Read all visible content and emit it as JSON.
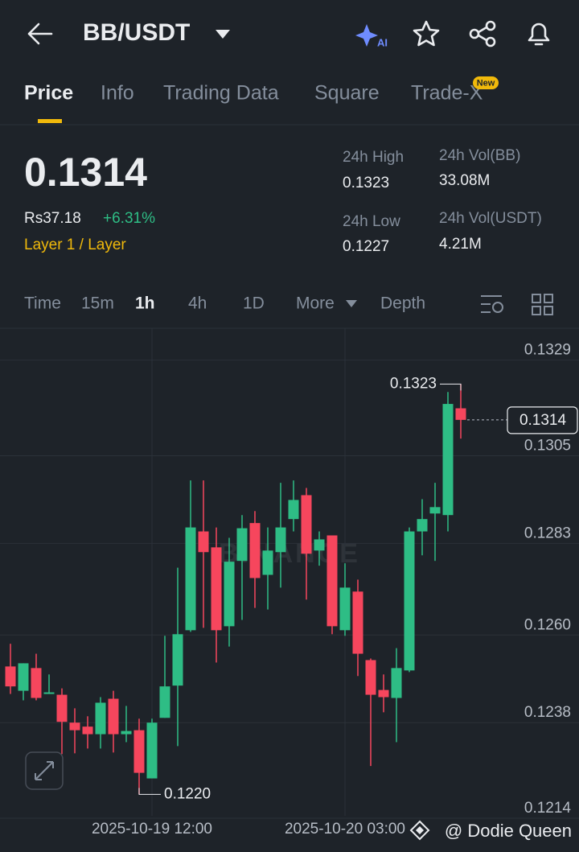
{
  "header": {
    "pair": "BB/USDT"
  },
  "tabs": {
    "items": [
      "Price",
      "Info",
      "Trading Data",
      "Square",
      "Trade-X"
    ],
    "badge": "New"
  },
  "ticker": {
    "price": "0.1314",
    "local_price": "Rs37.18",
    "change": "+6.31%",
    "tag": "Layer 1 / Layer",
    "stats": [
      {
        "label": "24h High",
        "value": "0.1323"
      },
      {
        "label": "24h Vol(BB)",
        "value": "33.08M"
      },
      {
        "label": "24h Low",
        "value": "0.1227"
      },
      {
        "label": "24h Vol(USDT)",
        "value": "4.21M"
      }
    ]
  },
  "intervals": {
    "items": [
      "Time",
      "15m",
      "1h",
      "4h",
      "1D",
      "More",
      "Depth"
    ]
  },
  "footer": {
    "credit": "@ Dodie Queen"
  },
  "chart_data": {
    "type": "candlestick",
    "watermark": "BINANCE",
    "categories": [
      null,
      null,
      null,
      null,
      null,
      null,
      null,
      null,
      null,
      null,
      null,
      "2025-10-19 12:00",
      null,
      null,
      null,
      null,
      null,
      null,
      null,
      null,
      null,
      null,
      null,
      null,
      null,
      null,
      "2025-10-20 03:00",
      null,
      null,
      null,
      null,
      null,
      null,
      null,
      null,
      null
    ],
    "open": [
      0.12521,
      0.1246,
      0.12517,
      0.12452,
      0.1245,
      0.1238,
      0.1237,
      0.12351,
      0.1244,
      0.12351,
      0.12361,
      0.1224,
      0.12392,
      0.12473,
      0.12612,
      0.1286,
      0.1282,
      0.12622,
      0.12786,
      0.12881,
      0.12751,
      0.12808,
      0.12891,
      0.12951,
      0.12812,
      0.1285,
      0.12612,
      0.12709,
      0.12537,
      0.12462,
      0.12442,
      0.12511,
      0.1286,
      0.12905,
      0.12901,
      0.13169
    ],
    "high": [
      0.12578,
      0.12529,
      0.12553,
      0.12501,
      0.12466,
      0.12416,
      0.12396,
      0.12444,
      0.1246,
      0.12422,
      0.1239,
      0.1239,
      0.12598,
      0.12769,
      0.12988,
      0.12988,
      0.1287,
      0.12844,
      0.12901,
      0.12911,
      0.1287,
      0.12982,
      0.12988,
      0.12969,
      0.1286,
      0.1285,
      0.1278,
      0.12739,
      0.12541,
      0.12501,
      0.12567,
      0.1287,
      0.12941,
      0.12982,
      0.1321,
      0.1323
    ],
    "low": [
      0.12452,
      0.12436,
      0.12436,
      0.12452,
      0.12301,
      0.12303,
      0.12315,
      0.12315,
      0.12305,
      0.12331,
      0.122,
      0.1224,
      0.12392,
      0.12321,
      0.12608,
      0.12618,
      0.12531,
      0.12571,
      0.12638,
      0.12668,
      0.12664,
      0.12719,
      0.1286,
      0.12689,
      0.12774,
      0.12602,
      0.12598,
      0.12497,
      0.12271,
      0.12406,
      0.12331,
      0.12507,
      0.128,
      0.12786,
      0.1286,
      0.13093
    ],
    "close": [
      0.12471,
      0.12529,
      0.12442,
      0.12456,
      0.12382,
      0.12361,
      0.12351,
      0.1243,
      0.12351,
      0.12359,
      0.12254,
      0.1238,
      0.12471,
      0.12602,
      0.1287,
      0.12808,
      0.12612,
      0.12784,
      0.12868,
      0.12743,
      0.12812,
      0.1287,
      0.12939,
      0.12804,
      0.1284,
      0.12622,
      0.12719,
      0.12553,
      0.1245,
      0.12444,
      0.12517,
      0.1286,
      0.12891,
      0.12921,
      0.1318,
      0.1314
    ],
    "up_color": "#2ebd85",
    "down_color": "#f6465d",
    "ylim": [
      0.1213,
      0.1337
    ],
    "yticks": [
      0.1329,
      0.1305,
      0.1283,
      {
        "value": 0.126,
        "label": "0.1260"
      },
      0.1238,
      0.1214
    ],
    "grid": true,
    "annotations": {
      "high": "0.1323",
      "low": "0.1220",
      "last": "0.1314"
    }
  }
}
